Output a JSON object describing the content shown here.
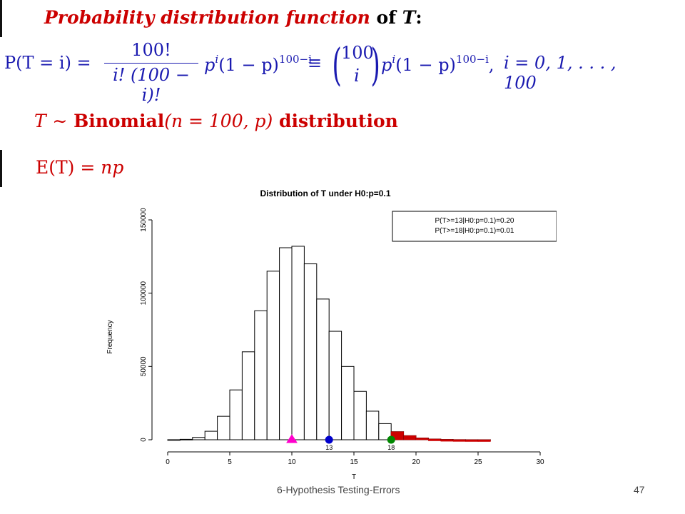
{
  "heading": {
    "part1": "Probability distribution function",
    "part2": "of",
    "part3": "T",
    "part4": ":"
  },
  "formula": {
    "lhs": "P(T = i) =",
    "frac_num": "100!",
    "frac_den": "i! (100 − i)!",
    "term1": "p",
    "term1_sup": "i",
    "term2": "(1 − p)",
    "term2_sup": "100−i",
    "equiv": "≡",
    "binom_top": "100",
    "binom_bottom": "i",
    "term3": "p",
    "term3_sup": "i",
    "term4": "(1 − p)",
    "term4_sup": "100−i",
    "comma": ",",
    "range": "i = 0, 1, . . . , 100"
  },
  "distribution": {
    "var": "T",
    "tilde": "∼",
    "name": "Binomial",
    "params": "(n = 100, p)",
    "word": "distribution"
  },
  "expectation": {
    "lhs": "E(T) =",
    "rhs": "np"
  },
  "chart_data": {
    "type": "bar",
    "title": "Distribution of T under H0:p=0.1",
    "xlabel": "T",
    "ylabel": "Frequency",
    "xlim": [
      0,
      30
    ],
    "ylim": [
      0,
      150000
    ],
    "x_ticks": [
      0,
      5,
      10,
      15,
      20,
      25,
      30
    ],
    "y_ticks": [
      0,
      50000,
      100000,
      150000
    ],
    "bin_starts": [
      0,
      1,
      2,
      3,
      4,
      5,
      6,
      7,
      8,
      9,
      10,
      11,
      12,
      13,
      14,
      15,
      16,
      17,
      18,
      19,
      20,
      21,
      22,
      23,
      24,
      25
    ],
    "values": [
      30,
      300,
      1600,
      5800,
      16000,
      34000,
      60000,
      88000,
      115000,
      131000,
      132000,
      120000,
      96000,
      74000,
      50000,
      33000,
      19500,
      11000,
      5500,
      2800,
      1200,
      500,
      200,
      70,
      20,
      5
    ],
    "highlight_color_red": "#cc0000",
    "legend": [
      "P(T>=13|H0:p=0.1)=0.20",
      "P(T>=18|H0:p=0.1)=0.01"
    ],
    "legend_position": "top-right",
    "markers": [
      {
        "x": 10,
        "shape": "triangle",
        "color": "#ff00cc",
        "label": ""
      },
      {
        "x": 13,
        "shape": "circle",
        "color": "#0000cc",
        "label": "13"
      },
      {
        "x": 18,
        "shape": "circle",
        "color": "#008800",
        "label": "18"
      }
    ],
    "red_bins_from": 18
  },
  "footer": {
    "text": "6-Hypothesis Testing-Errors",
    "page": "47"
  }
}
